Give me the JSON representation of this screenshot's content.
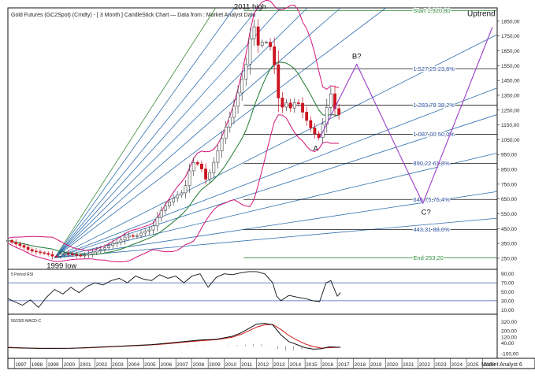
{
  "chart_data": {
    "type": "candlestick",
    "title": "Gold Futures (GC2Spot) (Cmdty) - [ 3 Month ] CandleStick Chart — Data from : Market Analyst Data",
    "branding": "Market Analyst 6",
    "x": [
      "1997",
      "1998",
      "1999",
      "2000",
      "2001",
      "2002",
      "2003",
      "2004",
      "2005",
      "2006",
      "2007",
      "2008",
      "2009",
      "2010",
      "2011",
      "2012",
      "2013",
      "2014",
      "2015",
      "2016",
      "2017",
      "2018",
      "2019",
      "2020",
      "2021",
      "2022",
      "2023",
      "2024",
      "2025",
      "2026"
    ],
    "main_panel": {
      "y_ticks": [
        250,
        350,
        450,
        550,
        650,
        750,
        850,
        950,
        1050,
        1150,
        1250,
        1350,
        1450,
        1550,
        1650,
        1750,
        1850
      ],
      "y_tick_labels": [
        "250,00",
        "350,00",
        "450,00",
        "550,00",
        "650,00",
        "750,00",
        "850,00",
        "950,00",
        "1050,00",
        "1150,00",
        "1250,00",
        "1350,00",
        "1450,00",
        "1550,00",
        "1650,00",
        "1750,00",
        "1850,00"
      ],
      "ylim": [
        175,
        1940
      ],
      "price_series": [
        {
          "x": 1996.6,
          "v": 370
        },
        {
          "x": 1997.0,
          "v": 350
        },
        {
          "x": 1997.5,
          "v": 330
        },
        {
          "x": 1998.0,
          "v": 300
        },
        {
          "x": 1998.5,
          "v": 290
        },
        {
          "x": 1999.0,
          "v": 280
        },
        {
          "x": 1999.5,
          "v": 258
        },
        {
          "x": 2000.0,
          "v": 285
        },
        {
          "x": 2000.5,
          "v": 275
        },
        {
          "x": 2001.0,
          "v": 268
        },
        {
          "x": 2001.5,
          "v": 272
        },
        {
          "x": 2002.0,
          "v": 300
        },
        {
          "x": 2002.5,
          "v": 315
        },
        {
          "x": 2003.0,
          "v": 345
        },
        {
          "x": 2003.5,
          "v": 365
        },
        {
          "x": 2004.0,
          "v": 405
        },
        {
          "x": 2004.5,
          "v": 395
        },
        {
          "x": 2005.0,
          "v": 430
        },
        {
          "x": 2005.5,
          "v": 445
        },
        {
          "x": 2006.0,
          "v": 560
        },
        {
          "x": 2006.5,
          "v": 620
        },
        {
          "x": 2007.0,
          "v": 670
        },
        {
          "x": 2007.5,
          "v": 700
        },
        {
          "x": 2008.0,
          "v": 900
        },
        {
          "x": 2008.5,
          "v": 880
        },
        {
          "x": 2008.9,
          "v": 770
        },
        {
          "x": 2009.5,
          "v": 940
        },
        {
          "x": 2010.0,
          "v": 1110
        },
        {
          "x": 2010.5,
          "v": 1240
        },
        {
          "x": 2011.0,
          "v": 1420
        },
        {
          "x": 2011.5,
          "v": 1620
        },
        {
          "x": 2011.75,
          "v": 1900
        },
        {
          "x": 2012.0,
          "v": 1680
        },
        {
          "x": 2012.5,
          "v": 1720
        },
        {
          "x": 2013.0,
          "v": 1660
        },
        {
          "x": 2013.25,
          "v": 1400
        },
        {
          "x": 2013.5,
          "v": 1230
        },
        {
          "x": 2013.75,
          "v": 1330
        },
        {
          "x": 2014.0,
          "v": 1250
        },
        {
          "x": 2014.5,
          "v": 1320
        },
        {
          "x": 2015.0,
          "v": 1200
        },
        {
          "x": 2015.5,
          "v": 1100
        },
        {
          "x": 2015.9,
          "v": 1060
        },
        {
          "x": 2016.3,
          "v": 1250
        },
        {
          "x": 2016.6,
          "v": 1360
        },
        {
          "x": 2017.0,
          "v": 1200
        },
        {
          "x": 2017.2,
          "v": 1240
        }
      ],
      "projection_path": [
        {
          "label": "A",
          "x": 2015.9,
          "v": 1060
        },
        {
          "label": "B?",
          "x": 2018.2,
          "v": 1560
        },
        {
          "label": "C?",
          "x": 2022.3,
          "v": 620
        },
        {
          "label": "Uptrend",
          "x": 2026.6,
          "v": 1810
        }
      ],
      "fib_levels": [
        {
          "label": "Start 1.920,80",
          "value": 1920.8
        },
        {
          "label": "1.527,25 23,6%",
          "value": 1527.25
        },
        {
          "label": "1.283,78 38,2%",
          "value": 1283.78
        },
        {
          "label": "1.087,00 50,0%",
          "value": 1087.0
        },
        {
          "label": "890,22 61,8%",
          "value": 890.22
        },
        {
          "label": "646,75 76,4%",
          "value": 646.75
        },
        {
          "label": "443,31 88,6%",
          "value": 443.31
        },
        {
          "label": "End 253,20",
          "value": 253.2
        }
      ],
      "annotations": [
        "2011 high",
        "1999 low",
        "A",
        "B?",
        "C?",
        "Uptrend"
      ]
    },
    "rsi_panel": {
      "label": "5 Period RSI",
      "y_ticks": [
        10,
        30,
        50,
        70,
        90
      ],
      "y_tick_labels": [
        "10,00",
        "30,00",
        "50,00",
        "70,00",
        "90,00"
      ],
      "ylim": [
        0,
        100
      ],
      "levels": [
        30,
        70
      ],
      "x": [
        1996.6,
        1997.0,
        1997.5,
        1998.0,
        1998.5,
        1999.0,
        1999.5,
        2000.0,
        2000.5,
        2001.0,
        2001.5,
        2002.0,
        2002.5,
        2003.0,
        2003.5,
        2004.0,
        2004.5,
        2005.0,
        2005.5,
        2006.0,
        2006.5,
        2007.0,
        2007.5,
        2008.0,
        2008.5,
        2009.0,
        2009.5,
        2010.0,
        2010.5,
        2011.0,
        2011.5,
        2012.0,
        2012.5,
        2013.0,
        2013.25,
        2013.5,
        2014.0,
        2014.5,
        2015.0,
        2015.5,
        2015.9,
        2016.3,
        2016.6,
        2017.0,
        2017.2
      ],
      "values": [
        35,
        28,
        20,
        32,
        15,
        38,
        55,
        45,
        60,
        48,
        62,
        70,
        65,
        75,
        80,
        70,
        85,
        78,
        75,
        88,
        80,
        85,
        70,
        85,
        90,
        60,
        82,
        90,
        88,
        92,
        95,
        95,
        90,
        70,
        40,
        30,
        42,
        38,
        35,
        30,
        28,
        70,
        75,
        40,
        48
      ]
    },
    "macd_panel": {
      "label": "50/25/5 MACD-C",
      "y_ticks": [
        -100,
        40,
        120,
        200,
        320
      ],
      "y_tick_labels": [
        "-100,00",
        "40,00",
        "120,00",
        "200,00",
        "320,00"
      ],
      "ylim": [
        -160,
        420
      ],
      "x": [
        1996.6,
        1997.5,
        1998.5,
        1999.5,
        2000.5,
        2001.5,
        2002.5,
        2003.5,
        2004.5,
        2005.5,
        2006.5,
        2007.5,
        2008.5,
        2009.5,
        2010.5,
        2011.0,
        2011.5,
        2012.0,
        2012.5,
        2013.0,
        2013.5,
        2014.0,
        2014.5,
        2015.0,
        2015.5,
        2016.0,
        2016.5,
        2017.2
      ],
      "macd": [
        -20,
        -25,
        -30,
        -30,
        -28,
        -20,
        -10,
        0,
        10,
        20,
        40,
        60,
        80,
        90,
        130,
        170,
        230,
        290,
        300,
        280,
        150,
        60,
        20,
        -20,
        -40,
        -35,
        -10,
        -15
      ],
      "signal": [
        -15,
        -22,
        -28,
        -30,
        -28,
        -22,
        -14,
        -4,
        6,
        16,
        32,
        52,
        70,
        84,
        118,
        152,
        200,
        250,
        280,
        285,
        220,
        140,
        80,
        30,
        -5,
        -25,
        -20,
        -15
      ]
    }
  }
}
